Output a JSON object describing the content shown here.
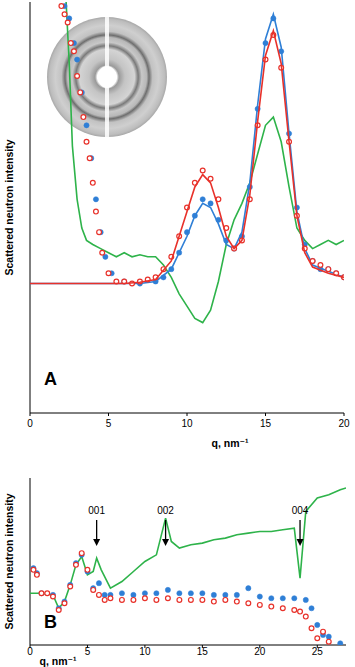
{
  "chart_data": [
    {
      "type": "scatter",
      "panel_label": "A",
      "x_label": "q, nm⁻¹",
      "y_label": "Scattered neutron intensity",
      "xlim": [
        0,
        20
      ],
      "xticks": [
        0,
        5,
        10,
        15,
        20
      ],
      "ylim": [
        0,
        100
      ],
      "tick_labels": "x",
      "series": [
        {
          "type": "line",
          "color": "#2eb34a",
          "line_style": "solid",
          "x": [
            2.3,
            2.5,
            2.7,
            3,
            3.3,
            3.6,
            4,
            4.5,
            5,
            5.5,
            6,
            6.5,
            7,
            7.5,
            8,
            8.5,
            9,
            9.5,
            10,
            10.5,
            11,
            11.5,
            12,
            12.5,
            13,
            13.5,
            14,
            14.5,
            15,
            15.5,
            16,
            16.5,
            17,
            17.5,
            18,
            18.5,
            19,
            19.5,
            20
          ],
          "values": [
            100,
            85,
            65,
            52,
            45,
            42,
            41,
            40,
            39,
            38,
            39,
            38,
            38.5,
            38,
            38,
            36,
            33,
            29,
            26,
            23,
            22,
            25,
            32,
            41,
            47,
            51,
            56,
            63,
            70,
            72,
            66,
            55,
            45,
            42,
            40,
            41,
            42,
            41,
            42
          ]
        },
        {
          "type": "scatter",
          "color": "#2f7fd6",
          "marker": "filled_circle",
          "x": [
            2.2,
            2.5,
            2.8,
            3.0,
            3.3,
            3.6,
            3.9,
            4.2,
            4.5,
            4.8,
            5.2,
            6,
            7,
            8,
            8.5,
            9,
            9.5,
            10,
            10.5,
            11,
            11.5,
            12,
            12.5,
            13,
            13.5,
            14,
            14.5,
            15,
            15.5,
            16,
            16.5,
            17,
            17.5,
            18,
            18.5,
            19,
            19.5,
            20
          ],
          "values": [
            99,
            96,
            90,
            86,
            78,
            70,
            62,
            52,
            44,
            38,
            34,
            32,
            31.5,
            32,
            33,
            35,
            39,
            44,
            48,
            52,
            51,
            47,
            42,
            40,
            43,
            55,
            74,
            90,
            96,
            88,
            68,
            50,
            41,
            37,
            35,
            35,
            34,
            33
          ]
        },
        {
          "type": "line",
          "color": "#2f7fd6",
          "line_style": "solid",
          "x": [
            0,
            5,
            7,
            8,
            9,
            10,
            10.5,
            11,
            11.5,
            12,
            12.5,
            13,
            13.5,
            14,
            14.5,
            15,
            15.5,
            16,
            16.5,
            17,
            17.5,
            18,
            19,
            20
          ],
          "values": [
            31.5,
            31.5,
            31.5,
            32,
            35,
            43,
            48,
            51,
            50,
            46,
            41,
            40,
            44,
            56,
            75,
            91,
            97,
            89,
            68,
            49,
            40,
            36,
            34.5,
            33
          ]
        },
        {
          "type": "scatter",
          "color": "#e8312a",
          "marker": "open_circle",
          "x": [
            2.0,
            2.2,
            2.4,
            2.6,
            2.8,
            3.0,
            3.2,
            3.4,
            3.6,
            3.8,
            4.0,
            4.2,
            4.4,
            4.6,
            5.0,
            5.5,
            6,
            6.5,
            7,
            7.5,
            8,
            8.5,
            9,
            9.5,
            10,
            10.5,
            11,
            11.5,
            12,
            12.5,
            13,
            13.5,
            14,
            14.5,
            15,
            15.5,
            16,
            16.5,
            17,
            17.5,
            18,
            18.5,
            19,
            19.5,
            20
          ],
          "values": [
            99,
            97,
            95,
            90,
            88,
            82,
            78,
            72,
            66,
            62,
            56,
            49,
            44,
            39,
            34,
            32,
            32,
            31.5,
            32,
            32.5,
            33,
            35,
            38,
            43,
            50,
            56,
            59,
            57,
            52,
            45,
            40,
            42,
            52,
            70,
            86,
            92,
            84,
            66,
            48,
            40,
            37,
            36,
            35,
            34,
            33
          ]
        },
        {
          "type": "line",
          "color": "#e8312a",
          "line_style": "solid",
          "x": [
            0,
            4,
            5,
            6,
            7,
            8,
            9,
            10,
            10.5,
            11,
            11.5,
            12,
            12.5,
            13,
            13.5,
            14,
            14.5,
            15,
            15.5,
            16,
            16.5,
            17,
            17.5,
            18,
            19,
            20
          ],
          "values": [
            31.5,
            31.5,
            31.5,
            31.5,
            31.8,
            32.5,
            37,
            49,
            55,
            58,
            56,
            50,
            43,
            40,
            42,
            53,
            71,
            87,
            93,
            85,
            66,
            48,
            39,
            35.5,
            34,
            33
          ]
        }
      ]
    },
    {
      "type": "scatter",
      "panel_label": "B",
      "x_label": "q, nm⁻¹",
      "y_label": "Scattered neutron intensity",
      "xlim": [
        0,
        27.5
      ],
      "xticks": [
        0,
        5,
        10,
        15,
        20,
        25
      ],
      "ylim": [
        0,
        100
      ],
      "tick_labels": "x",
      "annotations": [
        {
          "text": "001",
          "x": 5.8
        },
        {
          "text": "002",
          "x": 11.8
        },
        {
          "text": "004",
          "x": 23.5
        }
      ],
      "series": [
        {
          "type": "line",
          "color": "#2eb34a",
          "line_style": "solid",
          "x": [
            0,
            1,
            2,
            2.5,
            3,
            3.5,
            4,
            4.5,
            5,
            5.5,
            5.8,
            6.2,
            7,
            8,
            9,
            10,
            11,
            11.8,
            12.3,
            13,
            14,
            15,
            16,
            17,
            18,
            19,
            20,
            21,
            22,
            23,
            23.5,
            24,
            25,
            26,
            27,
            27.5
          ],
          "values": [
            31,
            31,
            30,
            22,
            26,
            36,
            48,
            53,
            42,
            44,
            52,
            45,
            34,
            38,
            44,
            50,
            54,
            76,
            62,
            58,
            60,
            61,
            63,
            64,
            66,
            67,
            68,
            68,
            69,
            70,
            40,
            80,
            88,
            90,
            93,
            94
          ]
        },
        {
          "type": "scatter",
          "color": "#2f7fd6",
          "marker": "filled_circle",
          "x": [
            0.3,
            0.6,
            1,
            2,
            2.5,
            3,
            3.5,
            4,
            4.5,
            5,
            5.5,
            6,
            6.5,
            7,
            8,
            9,
            10,
            11,
            12,
            13,
            14,
            15,
            16,
            17,
            18,
            19,
            20,
            21,
            22,
            23,
            24,
            24.5,
            25,
            25.5,
            26,
            27
          ],
          "values": [
            46,
            43,
            31,
            30,
            22,
            26,
            36,
            49,
            54,
            44,
            34,
            37,
            30,
            30,
            31,
            30,
            31,
            31,
            33,
            31,
            31,
            31,
            30,
            30,
            30,
            34,
            29,
            28,
            28,
            28,
            27,
            22,
            12,
            6,
            5,
            1
          ]
        },
        {
          "type": "scatter",
          "color": "#e8312a",
          "marker": "open_circle",
          "x": [
            0.3,
            0.6,
            1,
            1.5,
            2,
            2.5,
            3,
            3.5,
            4,
            4.5,
            5,
            5.5,
            6,
            6.5,
            7,
            8,
            9,
            10,
            11,
            12,
            13,
            14,
            15,
            16,
            17,
            18,
            19,
            20,
            21,
            22,
            23,
            23.5,
            24,
            24.5,
            25,
            25.5,
            26
          ],
          "values": [
            45,
            42,
            31,
            31,
            29,
            21,
            25,
            35,
            48,
            55,
            45,
            33,
            30,
            27,
            28,
            27,
            27,
            28,
            27,
            28,
            27,
            27,
            27,
            26,
            27,
            26,
            25,
            24,
            23,
            22,
            21,
            20,
            17,
            10,
            4,
            8,
            2
          ]
        }
      ]
    }
  ]
}
